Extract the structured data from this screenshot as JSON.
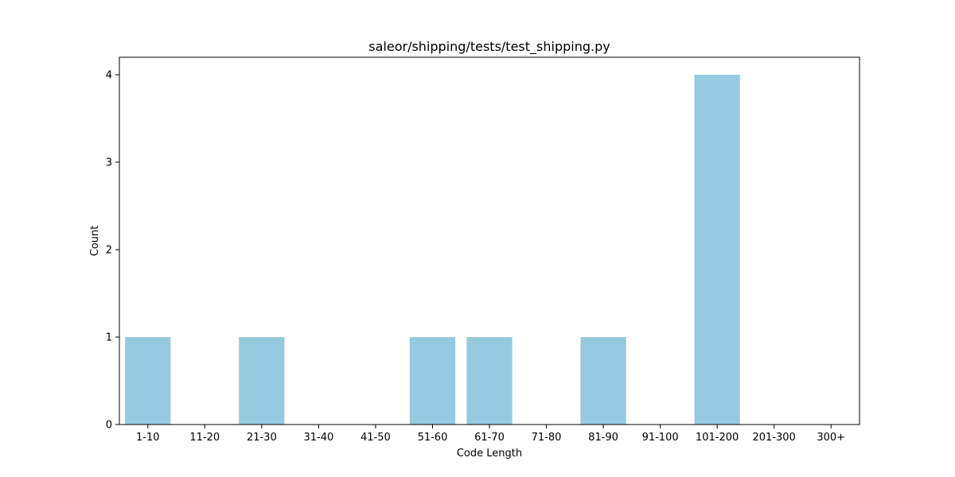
{
  "chart_data": {
    "type": "bar",
    "title": "saleor/shipping/tests/test_shipping.py",
    "xlabel": "Code Length",
    "ylabel": "Count",
    "categories": [
      "1-10",
      "11-20",
      "21-30",
      "31-40",
      "41-50",
      "51-60",
      "61-70",
      "71-80",
      "81-90",
      "91-100",
      "101-200",
      "201-300",
      "300+"
    ],
    "values": [
      1,
      0,
      1,
      0,
      0,
      1,
      1,
      0,
      1,
      0,
      4,
      0,
      0
    ],
    "ylim": [
      0,
      4.2
    ],
    "yticks": [
      0,
      1,
      2,
      3,
      4
    ],
    "bar_color": "#96cade",
    "grid": false,
    "legend": "none"
  }
}
